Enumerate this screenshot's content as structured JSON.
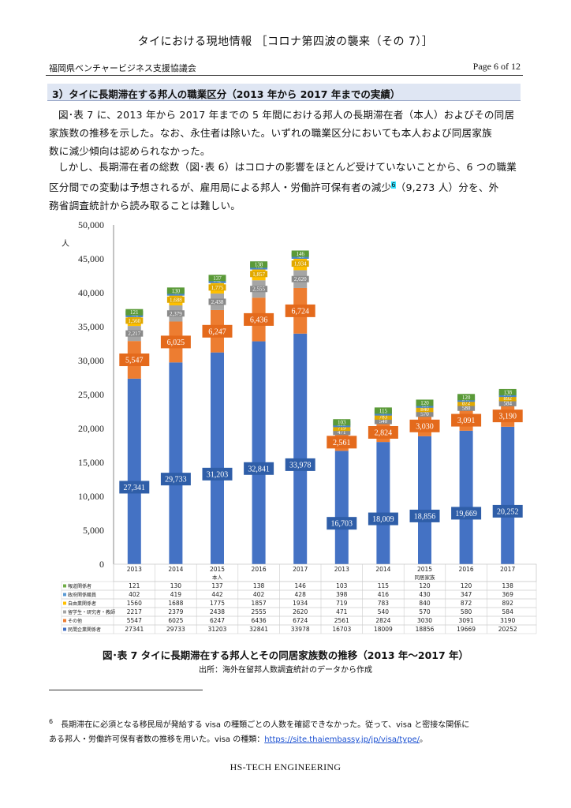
{
  "header": {
    "title": "タイにおける現地情報 ［コロナ第四波の襲来（その 7）］",
    "org": "福岡県ベンチャービジネス支援協議会",
    "page": "Page 6 of 12"
  },
  "section": {
    "heading": "3）タイに長期滞在する邦人の職業区分（2013 年から 2017 年までの実績）"
  },
  "body": {
    "p1_l1": "図･表 7 に、2013 年から 2017 年までの 5 年間における邦人の長期滞在者（本人）およびその同居",
    "p1_l2": "家族数の推移を示した。なお、永住者は除いた。いずれの職業区分においても本人および同居家族",
    "p1_l3": "数に減少傾向は認められなかった。",
    "p2_l1": "しかし、長期滞在者の総数（図･表 6）はコロナの影響をほとんど受けていないことから、6 つの職業",
    "p2_l2a": "区分間での変動は予想されるが、雇用局による邦人・労働許可保有者の減少",
    "p2_l2_ref": "6",
    "p2_l2b": "（9,273 人）分を、外",
    "p2_l3": "務省調査統計から読み取ることは難しい。"
  },
  "chart_data": {
    "type": "bar",
    "stacked": true,
    "ylabel": "人",
    "ylim": [
      0,
      50000
    ],
    "yticks": [
      "50,000",
      "45,000",
      "40,000",
      "35,000",
      "30,000",
      "25,000",
      "20,000",
      "15,000",
      "10,000",
      "5,000",
      "0"
    ],
    "categories": [
      "2013",
      "2014",
      "2015",
      "2016",
      "2017",
      "2013",
      "2014",
      "2015",
      "2016",
      "2017"
    ],
    "groups": [
      {
        "name": "本人",
        "span": [
          0,
          4
        ]
      },
      {
        "name": "同居家族",
        "span": [
          5,
          9
        ]
      }
    ],
    "series": [
      {
        "name": "民間企業関係者",
        "color": "#4472c4",
        "values": [
          27341,
          29733,
          31203,
          32841,
          33978,
          16703,
          18009,
          18856,
          19669,
          20252
        ]
      },
      {
        "name": "その他",
        "color": "#ed7d31",
        "values": [
          5547,
          6025,
          6247,
          6436,
          6724,
          2561,
          2824,
          3030,
          3091,
          3190
        ]
      },
      {
        "name": "留学生・研究者・教師",
        "color": "#a5a5a5",
        "values": [
          2217,
          2379,
          2438,
          2555,
          2620,
          471,
          540,
          570,
          580,
          584
        ]
      },
      {
        "name": "自由業関係者",
        "color": "#ffc000",
        "values": [
          1560,
          1688,
          1775,
          1857,
          1934,
          719,
          783,
          840,
          872,
          892
        ]
      },
      {
        "name": "政府関係職員",
        "color": "#5b9bd5",
        "values": [
          402,
          419,
          442,
          402,
          428,
          398,
          416,
          430,
          347,
          369
        ]
      },
      {
        "name": "報道関係者",
        "color": "#70ad47",
        "values": [
          121,
          130,
          137,
          138,
          146,
          103,
          115,
          120,
          120,
          138
        ]
      }
    ],
    "bar_labels": [
      [
        "27,341",
        "29,733",
        "31,203",
        "32,841",
        "33,978",
        "16,703",
        "18,009",
        "18,856",
        "19,669",
        "20,252"
      ],
      [
        "5,547",
        "6,025",
        "6,247",
        "6,436",
        "6,724",
        "2,561",
        "2,824",
        "3,030",
        "3,091",
        "3,190"
      ],
      [
        "2,217",
        "2,379",
        "2,438",
        "2,555",
        "2,620",
        "471",
        "540",
        "570",
        "580",
        "584"
      ],
      [
        "1,560",
        "1,688",
        "1,775",
        "1,857",
        "1,934",
        "719",
        "783",
        "840",
        "872",
        "892"
      ],
      [
        "402",
        "419",
        "442",
        "402",
        "428",
        "398",
        "416",
        "430",
        "347",
        "369"
      ],
      [
        "121",
        "130",
        "137",
        "138",
        "146",
        "103",
        "115",
        "120",
        "120",
        "138"
      ]
    ],
    "table_rows": [
      {
        "name": "報道関係者",
        "values": [
          "121",
          "130",
          "137",
          "138",
          "146",
          "103",
          "115",
          "120",
          "120",
          "138"
        ]
      },
      {
        "name": "政府関係職員",
        "values": [
          "402",
          "419",
          "442",
          "402",
          "428",
          "398",
          "416",
          "430",
          "347",
          "369"
        ]
      },
      {
        "name": "自由業関係者",
        "values": [
          "1560",
          "1688",
          "1775",
          "1857",
          "1934",
          "719",
          "783",
          "840",
          "872",
          "892"
        ]
      },
      {
        "name": "留学生・研究者・教師",
        "values": [
          "2217",
          "2379",
          "2438",
          "2555",
          "2620",
          "471",
          "540",
          "570",
          "580",
          "584"
        ]
      },
      {
        "name": "その他",
        "values": [
          "5547",
          "6025",
          "6247",
          "6436",
          "6724",
          "2561",
          "2824",
          "3030",
          "3091",
          "3190"
        ]
      },
      {
        "name": "民間企業関係者",
        "values": [
          "27341",
          "29733",
          "31203",
          "32841",
          "33978",
          "16703",
          "18009",
          "18856",
          "19669",
          "20252"
        ]
      }
    ],
    "table_colors": [
      "#70ad47",
      "#5b9bd5",
      "#ffc000",
      "#a5a5a5",
      "#ed7d31",
      "#4472c4"
    ],
    "grid": false
  },
  "figure": {
    "caption": "図･表 7 タイに長期滞在する邦人とその同居家族数の推移（2013 年～2017 年）",
    "source": "出所：海外在留邦人数調査統計のデータから作成"
  },
  "footnote": {
    "number": "6",
    "line1": "長期滞在に必須となる移民局が発給する visa の種類ごとの人数を確認できなかった。従って、visa と密接な関係に",
    "line2_prefix": "ある邦人・労働許可保有者数の推移を用いた。visa の種類：",
    "link": "https://site.thaiembassy.jp/jp/visa/type/",
    "line2_suffix": "。"
  },
  "footer": {
    "text": "HS-TECH ENGINEERING"
  }
}
